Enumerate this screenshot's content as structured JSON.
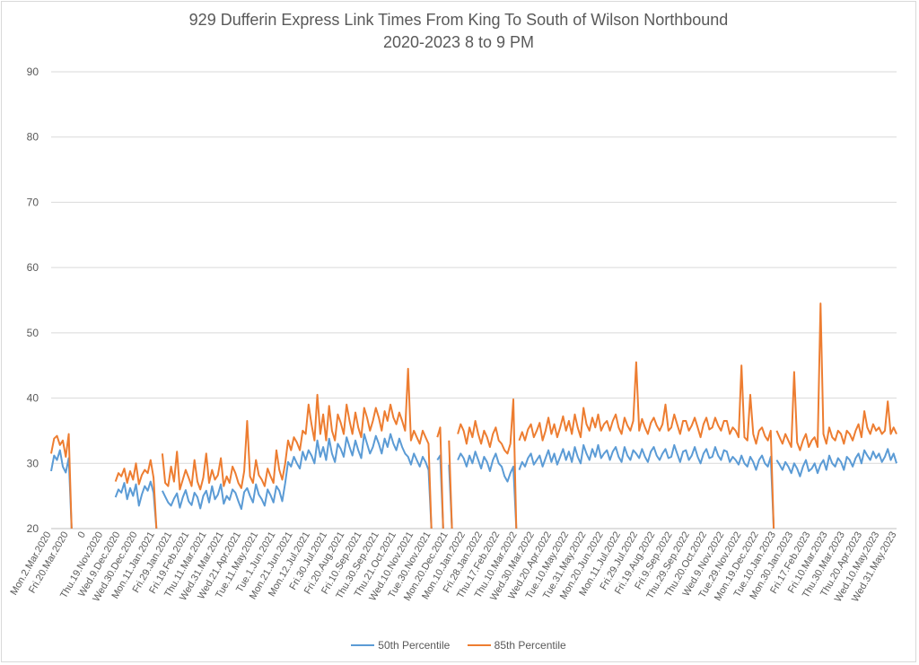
{
  "chart_data": {
    "type": "line",
    "title": "929 Dufferin Express Link Times From King To South of Wilson Northbound",
    "subtitle": "2020-2023 8 to 9 PM",
    "ylim": [
      20,
      90
    ],
    "yticks": [
      20,
      30,
      40,
      50,
      60,
      70,
      80,
      90
    ],
    "grid": true,
    "legend_position": "bottom",
    "x_tick_labels": [
      "Mon.2.Mar.2020",
      "Fri.20.Mar.2020",
      "0",
      "Thu.19.Nov.2020",
      "Wed.9.Dec.2020",
      "Wed.30.Dec.2020",
      "Mon.11.Jan.2021",
      "Fri.29.Jan.2021",
      "Fri.19.Feb.2021",
      "Thu.11.Mar.2021",
      "Wed.31.Mar.2021",
      "Wed.21.Apr.2021",
      "Tue.11.May.2021",
      "Tue.1.Jun.2021",
      "Mon.21.Jun.2021",
      "Mon.12.Jul.2021",
      "Fri.30.Jul.2021",
      "Fri.20.Aug.2021",
      "Fri.10.Sep.2021",
      "Thu.30.Sep.2021",
      "Thu.21.Oct.2021",
      "Wed.10.Nov.2021",
      "Tue.30.Nov.2021",
      "Mon.20.Dec.2021",
      "Mon.10.Jan.2022",
      "Fri.28.Jan.2022",
      "Thu.17.Feb.2022",
      "Thu.10.Mar.2022",
      "Wed.30.Mar.2022",
      "Wed.20.Apr.2022",
      "Tue.10.May.2022",
      "Tue.31.May.2022",
      "Mon.20.Jun.2022",
      "Mon.11.Jul.2022",
      "Fri.29.Jul.2022",
      "Fri.19.Aug.2022",
      "Fri.9.Sep.2022",
      "Thu.29.Sep.2022",
      "Thu.20.Oct.2022",
      "Wed.9.Nov.2022",
      "Tue.29.Nov.2022",
      "Mon.19.Dec.2022",
      "Tue.10.Jan.2023",
      "Mon.30.Jan.2023",
      "Fri.17.Feb.2023",
      "Fri.10.Mar.2023",
      "Thu.30.Mar.2023",
      "Thu.20.Apr.2023",
      "Wed.10.May.2023",
      "Wed.31.May.2023"
    ],
    "series": [
      {
        "name": "50th Percentile",
        "color": "#5b9bd5",
        "values": [
          28.8,
          31.2,
          30.5,
          32.0,
          29.5,
          28.6,
          30.8,
          null,
          null,
          null,
          null,
          null,
          null,
          null,
          null,
          null,
          null,
          null,
          null,
          null,
          null,
          null,
          24.8,
          26.0,
          25.5,
          27.0,
          24.5,
          26.2,
          25.0,
          26.8,
          23.5,
          25.2,
          26.5,
          25.8,
          27.2,
          25.5,
          null,
          null,
          25.8,
          24.9,
          24.0,
          23.5,
          24.6,
          25.4,
          23.2,
          24.8,
          25.9,
          24.2,
          23.6,
          25.5,
          24.8,
          23.1,
          25.0,
          25.8,
          24.0,
          26.5,
          24.5,
          25.2,
          26.8,
          23.8,
          25.0,
          24.4,
          26.0,
          25.5,
          24.2,
          23.0,
          25.6,
          26.2,
          25.0,
          24.0,
          26.8,
          25.2,
          24.5,
          23.5,
          26.0,
          25.1,
          24.0,
          26.5,
          25.8,
          24.2,
          27.0,
          30.2,
          29.5,
          31.0,
          30.0,
          29.2,
          31.8,
          30.5,
          32.0,
          31.2,
          30.0,
          33.5,
          31.0,
          32.5,
          30.5,
          33.8,
          31.5,
          30.2,
          33.0,
          32.2,
          31.0,
          34.0,
          32.5,
          31.2,
          33.5,
          32.0,
          30.8,
          34.5,
          33.0,
          31.5,
          32.5,
          34.2,
          33.0,
          31.5,
          33.8,
          32.5,
          34.5,
          33.0,
          32.0,
          33.8,
          32.5,
          31.5,
          31.0,
          29.8,
          31.5,
          30.5,
          29.5,
          31.0,
          30.2,
          29.0,
          null,
          null,
          30.5,
          31.2,
          null,
          null,
          29.8,
          null,
          null,
          30.5,
          31.5,
          30.8,
          29.5,
          31.2,
          30.0,
          31.8,
          30.5,
          29.2,
          31.0,
          30.2,
          28.8,
          30.5,
          31.5,
          30.0,
          29.5,
          28.0,
          27.2,
          28.5,
          29.5,
          null,
          29.0,
          30.2,
          29.5,
          30.8,
          31.5,
          29.8,
          30.5,
          31.2,
          29.5,
          30.8,
          32.0,
          30.2,
          31.5,
          29.8,
          31.0,
          32.2,
          30.5,
          31.8,
          30.2,
          32.5,
          31.0,
          30.0,
          32.8,
          31.5,
          30.5,
          32.2,
          31.0,
          32.8,
          30.8,
          31.5,
          32.0,
          30.5,
          31.8,
          32.5,
          31.0,
          30.2,
          32.5,
          31.2,
          30.5,
          32.0,
          31.5,
          30.8,
          32.2,
          31.0,
          30.2,
          31.8,
          32.5,
          31.2,
          30.5,
          31.5,
          32.2,
          30.8,
          31.0,
          32.8,
          31.5,
          30.2,
          31.8,
          32.0,
          30.5,
          31.2,
          32.5,
          31.0,
          30.0,
          31.5,
          32.2,
          30.8,
          31.0,
          32.5,
          31.2,
          30.5,
          32.0,
          31.8,
          30.2,
          31.0,
          30.5,
          29.8,
          31.2,
          30.0,
          29.5,
          31.0,
          30.2,
          29.0,
          30.5,
          31.2,
          30.0,
          29.5,
          31.0,
          null,
          30.5,
          29.8,
          29.0,
          30.2,
          29.5,
          28.5,
          30.0,
          29.2,
          28.0,
          29.5,
          30.5,
          28.8,
          29.2,
          30.0,
          28.5,
          29.8,
          30.5,
          29.0,
          31.2,
          30.0,
          29.5,
          30.8,
          30.2,
          29.0,
          31.0,
          30.5,
          29.5,
          30.8,
          31.5,
          30.0,
          32.0,
          31.2,
          30.5,
          31.8,
          30.8,
          31.5,
          30.2,
          31.0,
          32.2,
          30.5,
          31.5,
          30.0
        ],
        "comment": ""
      },
      {
        "name": "85th Percentile",
        "color": "#ed7d31",
        "values": [
          31.5,
          33.8,
          34.2,
          32.8,
          33.5,
          31.0,
          34.5,
          null,
          null,
          null,
          null,
          null,
          null,
          null,
          null,
          null,
          null,
          null,
          null,
          null,
          null,
          null,
          27.2,
          28.5,
          28.0,
          29.2,
          27.0,
          28.8,
          27.5,
          30.0,
          26.8,
          28.2,
          29.0,
          28.5,
          30.5,
          27.8,
          null,
          null,
          31.5,
          27.0,
          26.5,
          29.5,
          27.2,
          31.8,
          26.0,
          27.5,
          29.0,
          27.8,
          26.5,
          30.5,
          27.2,
          26.0,
          27.8,
          31.5,
          27.0,
          29.0,
          27.5,
          28.2,
          30.8,
          26.5,
          28.0,
          27.0,
          29.5,
          28.5,
          27.0,
          26.2,
          28.8,
          36.5,
          28.0,
          27.0,
          30.5,
          28.2,
          27.5,
          26.5,
          29.2,
          28.0,
          27.0,
          32.0,
          29.0,
          27.5,
          30.0,
          33.5,
          32.0,
          34.0,
          33.2,
          32.0,
          35.0,
          34.5,
          39.0,
          36.0,
          33.5,
          40.5,
          34.5,
          37.5,
          33.5,
          38.8,
          35.0,
          33.5,
          37.5,
          36.2,
          34.5,
          39.0,
          36.5,
          34.5,
          37.8,
          35.5,
          34.0,
          38.5,
          37.0,
          35.0,
          36.5,
          38.5,
          37.0,
          35.0,
          38.0,
          36.5,
          39.0,
          37.0,
          36.0,
          37.8,
          36.5,
          35.0,
          44.5,
          33.5,
          35.0,
          34.0,
          33.0,
          35.0,
          34.0,
          33.0,
          null,
          null,
          34.0,
          35.5,
          null,
          null,
          33.5,
          null,
          null,
          34.5,
          36.0,
          35.0,
          33.0,
          35.5,
          34.0,
          36.5,
          34.5,
          33.0,
          35.0,
          34.0,
          32.5,
          34.5,
          35.5,
          33.5,
          33.0,
          32.0,
          31.5,
          33.0,
          39.8,
          null,
          33.5,
          34.8,
          33.5,
          35.2,
          36.0,
          34.0,
          35.0,
          36.2,
          33.5,
          35.0,
          37.0,
          34.5,
          36.0,
          34.0,
          35.5,
          37.2,
          35.0,
          36.5,
          34.5,
          37.5,
          35.5,
          34.0,
          38.5,
          36.0,
          35.0,
          37.0,
          35.5,
          37.5,
          35.0,
          36.0,
          36.5,
          35.0,
          36.5,
          37.5,
          35.5,
          34.5,
          37.0,
          35.8,
          35.0,
          36.5,
          45.5,
          35.0,
          36.8,
          35.5,
          34.5,
          36.2,
          37.0,
          35.8,
          35.0,
          36.0,
          39.0,
          35.0,
          35.5,
          37.5,
          36.0,
          34.5,
          36.5,
          36.5,
          35.0,
          35.8,
          37.0,
          35.5,
          34.0,
          36.0,
          37.0,
          35.2,
          35.5,
          37.0,
          35.8,
          35.0,
          36.5,
          36.5,
          34.5,
          35.5,
          35.0,
          34.0,
          45.0,
          34.0,
          33.5,
          40.5,
          34.5,
          33.0,
          35.0,
          35.5,
          34.2,
          33.5,
          35.0,
          null,
          35.0,
          34.0,
          33.0,
          34.5,
          33.5,
          32.5,
          44.0,
          33.2,
          32.0,
          33.5,
          34.5,
          32.5,
          33.5,
          34.0,
          32.5,
          54.5,
          34.5,
          33.0,
          35.5,
          34.0,
          33.5,
          35.0,
          34.5,
          33.0,
          35.0,
          34.5,
          33.5,
          35.0,
          36.0,
          34.0,
          38.0,
          35.5,
          34.5,
          36.0,
          35.0,
          35.5,
          34.5,
          35.0,
          39.5,
          34.5,
          35.5,
          34.5
        ]
      }
    ]
  }
}
